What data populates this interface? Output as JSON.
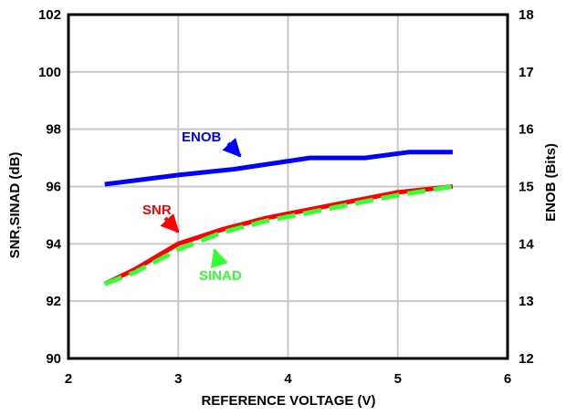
{
  "chart_data": {
    "type": "line",
    "xlabel": "REFERENCE VOLTAGE (V)",
    "ylabel": "SNR,SINAD (dB)",
    "y2label": "ENOB (Bits)",
    "xlim": [
      2,
      6
    ],
    "ylim": [
      90,
      102
    ],
    "y2lim": [
      12,
      18
    ],
    "grid": true,
    "x_ticks": [
      "2",
      "3",
      "4",
      "5",
      "6"
    ],
    "y_ticks": [
      "90",
      "92",
      "94",
      "96",
      "98",
      "100",
      "102"
    ],
    "y2_ticks": [
      "12",
      "13",
      "14",
      "15",
      "16",
      "17",
      "18"
    ],
    "series": [
      {
        "name": "SNR",
        "axis": "left",
        "color": "#ff0000",
        "style": "solid",
        "x": [
          2.33,
          2.6,
          3.0,
          3.4,
          3.8,
          4.2,
          4.6,
          5.0,
          5.5
        ],
        "y": [
          92.6,
          93.1,
          94.0,
          94.5,
          94.9,
          95.2,
          95.5,
          95.8,
          96.0
        ]
      },
      {
        "name": "SINAD",
        "axis": "left",
        "color": "#33ff33",
        "style": "dashed",
        "x": [
          2.33,
          2.6,
          3.0,
          3.4,
          3.8,
          4.2,
          4.6,
          5.0,
          5.5
        ],
        "y": [
          92.6,
          93.0,
          93.8,
          94.4,
          94.8,
          95.1,
          95.4,
          95.7,
          96.0
        ]
      },
      {
        "name": "ENOB",
        "axis": "right",
        "color": "#0000ff",
        "style": "solid",
        "x": [
          2.33,
          3.0,
          3.5,
          4.2,
          4.7,
          5.1,
          5.5
        ],
        "y": [
          15.04,
          15.2,
          15.3,
          15.5,
          15.5,
          15.6,
          15.6
        ]
      }
    ],
    "annotations": [
      {
        "text": "ENOB",
        "color": "#0000ff"
      },
      {
        "text": "SNR",
        "color": "#ff0000"
      },
      {
        "text": "SINAD",
        "color": "#33ff33"
      }
    ]
  }
}
